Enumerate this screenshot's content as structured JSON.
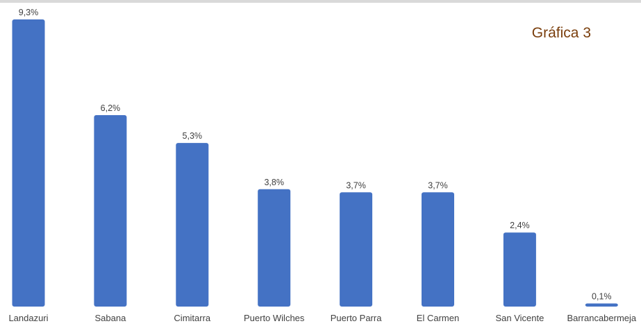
{
  "chart_data": {
    "type": "bar",
    "title": "Gráfica 3",
    "xlabel": "",
    "ylabel": "",
    "categories": [
      "Landazuri",
      "Sabana",
      "Cimitarra",
      "Puerto Wilches",
      "Puerto Parra",
      "El Carmen",
      "San Vicente",
      "Barrancabermeja"
    ],
    "values": [
      9.3,
      6.2,
      5.3,
      3.8,
      3.7,
      3.7,
      2.4,
      0.1
    ],
    "data_labels": [
      "9,3%",
      "6,2%",
      "5,3%",
      "3,8%",
      "3,7%",
      "3,7%",
      "2,4%",
      "0,1%"
    ],
    "ylim": [
      0,
      9.3
    ],
    "grid": false,
    "legend": "none",
    "colors": {
      "bar": "#4472c4",
      "title": "#7a3e0c",
      "text": "#404040"
    }
  }
}
